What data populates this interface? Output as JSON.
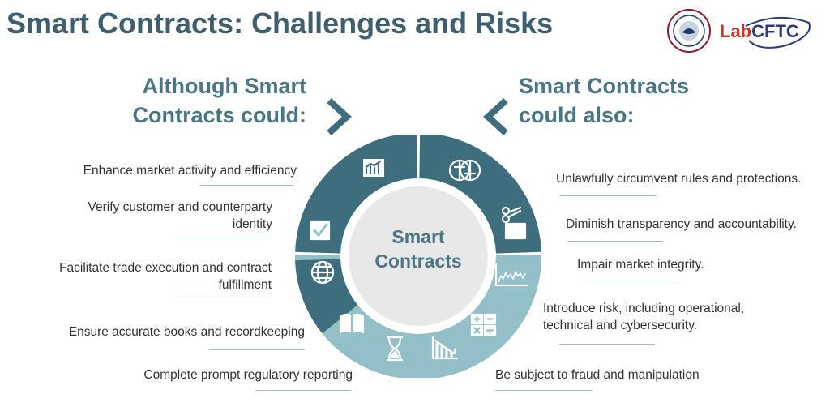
{
  "title": "Smart Contracts: Challenges and Risks",
  "logos": {
    "seal_text": "COMMODITY FUTURES TRADING COMMISSION",
    "lab_prefix": "Lab",
    "lab_suffix": "CFTC"
  },
  "left_heading": [
    "Although Smart",
    "Contracts could:"
  ],
  "right_heading": [
    "Smart Contracts",
    "could also:"
  ],
  "center": [
    "Smart",
    "Contracts"
  ],
  "left_items": [
    [
      "Enhance market activity and efficiency"
    ],
    [
      "Verify customer and counterparty",
      "identity"
    ],
    [
      "Facilitate trade execution and contract",
      "fulfillment"
    ],
    [
      "Ensure accurate books and recordkeeping"
    ],
    [
      "Complete prompt regulatory reporting"
    ]
  ],
  "right_items": [
    [
      "Unlawfully circumvent rules and protections."
    ],
    [
      "Diminish transparency and accountability."
    ],
    [
      "Impair market integrity."
    ],
    [
      "Introduce risk, including operational,",
      "technical and cybersecurity."
    ],
    [
      "Be subject to fraud and manipulation"
    ]
  ],
  "colors": {
    "title": "#3f5f6f",
    "heading": "#4a7584",
    "dark": "#3e6e7d",
    "light": "#93bfc8",
    "center": "#e8e8e8",
    "line": "#9fc2cc"
  },
  "icons": [
    "bar-chart-icon",
    "checkbox-icon",
    "globe-icon",
    "book-icon",
    "hourglass-icon",
    "gears-face-icon",
    "scissors-document-icon",
    "line-chart-icon",
    "calculator-icon",
    "declining-chart-icon"
  ]
}
